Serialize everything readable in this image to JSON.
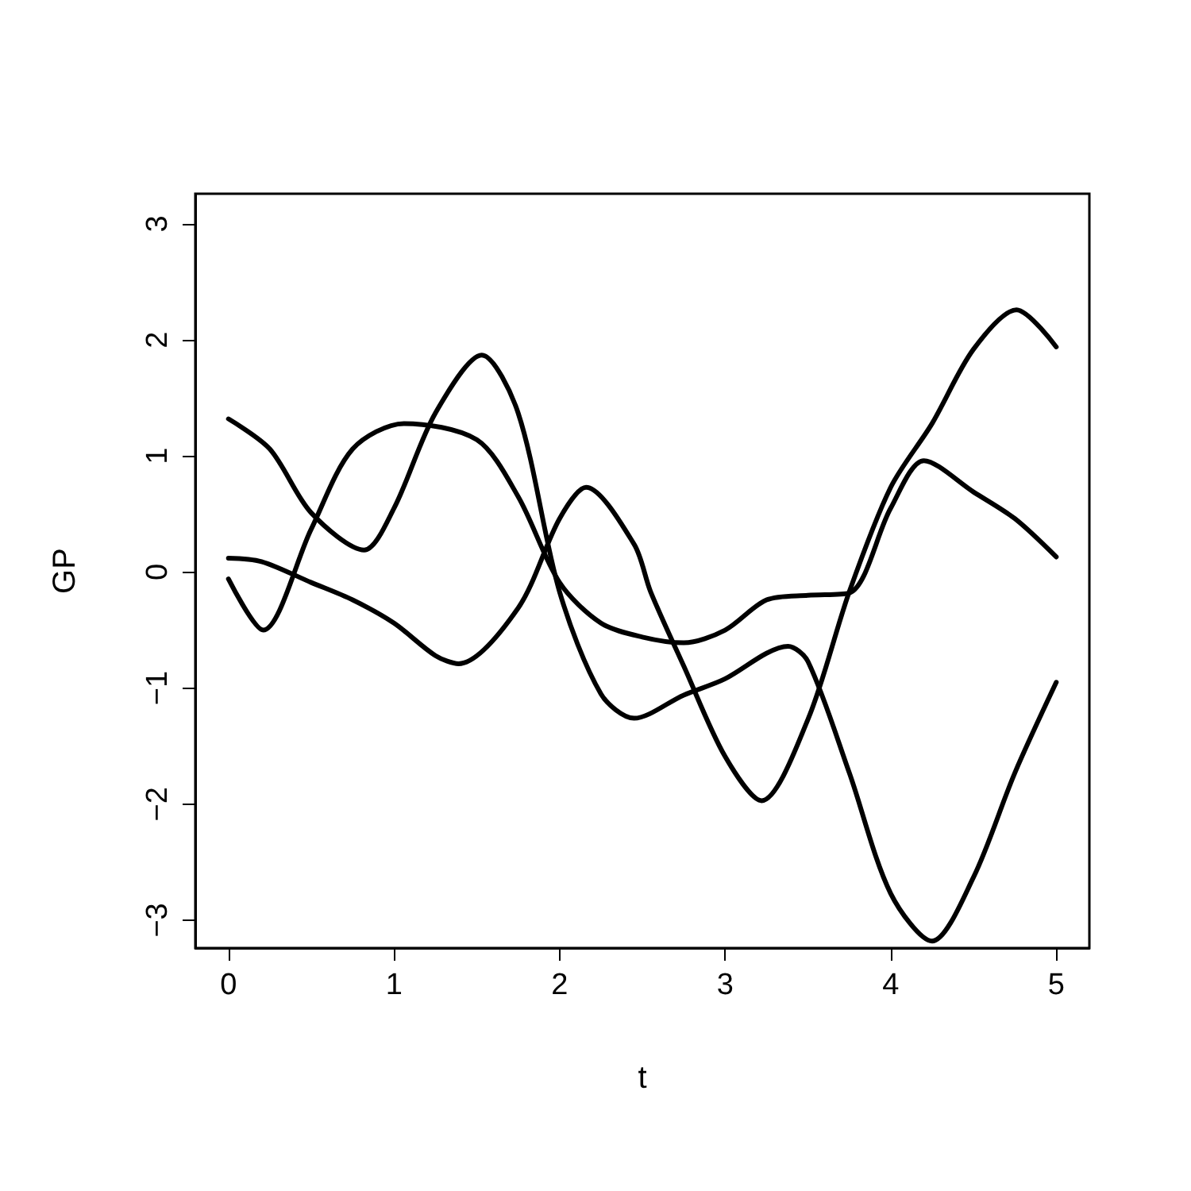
{
  "chart_data": {
    "type": "line",
    "xlabel": "t",
    "ylabel": "GP",
    "xlim": [
      -0.2,
      5.2
    ],
    "ylim": [
      -3.24,
      3.26
    ],
    "xticks": [
      0,
      1,
      2,
      3,
      4,
      5
    ],
    "yticks": [
      {
        "value": -3,
        "label": "−3"
      },
      {
        "value": -2,
        "label": "−2"
      },
      {
        "value": -1,
        "label": "−1"
      },
      0,
      1,
      2,
      3
    ],
    "grid": false,
    "marker": "none",
    "line_style": "solid",
    "series": [
      {
        "color": "#000000",
        "x": [
          0,
          0.25,
          0.5,
          0.82,
          1.0,
          1.25,
          1.53,
          1.75,
          2.0,
          2.25,
          2.45,
          2.75,
          3.0,
          3.25,
          3.38,
          3.5,
          3.75,
          4.0,
          4.25,
          4.5,
          4.75,
          5.0
        ],
        "values": [
          1.32,
          1.06,
          0.51,
          0.19,
          0.55,
          1.37,
          1.87,
          1.37,
          -0.17,
          -1.05,
          -1.26,
          -1.06,
          -0.92,
          -0.7,
          -0.64,
          -0.77,
          -1.73,
          -2.77,
          -3.18,
          -2.63,
          -1.73,
          -0.95
        ]
      },
      {
        "color": "#000000",
        "x": [
          0,
          0.21,
          0.5,
          0.75,
          1.06,
          1.5,
          1.75,
          2.0,
          2.25,
          2.5,
          2.75,
          3.0,
          3.25,
          3.5,
          3.75,
          4.0,
          4.2,
          4.5,
          4.75,
          5.0
        ],
        "values": [
          -0.06,
          -0.5,
          0.37,
          1.06,
          1.28,
          1.14,
          0.65,
          -0.09,
          -0.44,
          -0.56,
          -0.61,
          -0.5,
          -0.24,
          -0.2,
          -0.18,
          0.55,
          0.96,
          0.69,
          0.46,
          0.13
        ]
      },
      {
        "color": "#000000",
        "x": [
          0,
          0.2,
          0.5,
          0.75,
          1.0,
          1.25,
          1.39,
          1.75,
          2.0,
          2.16,
          2.45,
          2.55,
          2.75,
          3.0,
          3.22,
          3.5,
          3.75,
          4.0,
          4.25,
          4.5,
          4.76,
          5.0
        ],
        "values": [
          0.12,
          0.09,
          -0.09,
          -0.24,
          -0.44,
          -0.72,
          -0.79,
          -0.31,
          0.46,
          0.73,
          0.24,
          -0.17,
          -0.81,
          -1.59,
          -1.97,
          -1.27,
          -0.17,
          0.73,
          1.28,
          1.92,
          2.26,
          1.94
        ]
      }
    ]
  }
}
